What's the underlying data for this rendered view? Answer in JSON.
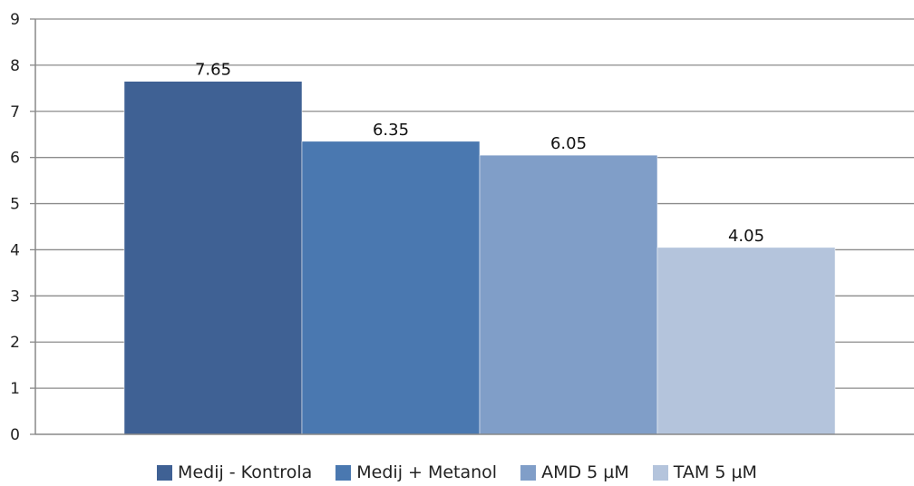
{
  "chart_data": {
    "type": "bar",
    "categories": [
      "Medij - Kontrola",
      "Medij + Metanol",
      "AMD 5 µM",
      "TAM 5 µM"
    ],
    "values": [
      7.65,
      6.35,
      6.05,
      4.05
    ],
    "data_labels": [
      "7.65",
      "6.35",
      "6.05",
      "4.05"
    ],
    "colors": [
      "#3f6194",
      "#4a78b0",
      "#809ec8",
      "#b4c4dc"
    ],
    "title": "",
    "xlabel": "",
    "ylabel": "",
    "ylim": [
      0,
      9
    ],
    "yticks": [
      0,
      1,
      2,
      3,
      4,
      5,
      6,
      7,
      8,
      9
    ],
    "grid": true,
    "legend_position": "bottom"
  },
  "legend": [
    {
      "label": "Medij - Kontrola",
      "color": "#3f6194"
    },
    {
      "label": "Medij + Metanol",
      "color": "#4a78b0"
    },
    {
      "label": "AMD 5 µM",
      "color": "#809ec8"
    },
    {
      "label": "TAM 5 µM",
      "color": "#b4c4dc"
    }
  ]
}
